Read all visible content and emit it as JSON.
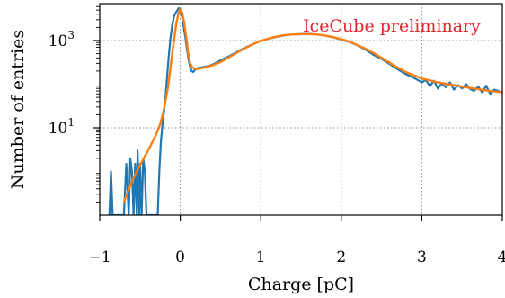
{
  "chart_data": {
    "type": "line",
    "title": "",
    "xlabel": "Charge [pC]",
    "ylabel": "Number of entries",
    "xlim": [
      -1,
      4
    ],
    "ylim": [
      0.1,
      7000
    ],
    "yscale": "log",
    "grid": true,
    "x_ticks": [
      {
        "value": -1,
        "label": "−1"
      },
      {
        "value": 0,
        "label": "0"
      },
      {
        "value": 1,
        "label": "1"
      },
      {
        "value": 2,
        "label": "2"
      },
      {
        "value": 3,
        "label": "3"
      },
      {
        "value": 4,
        "label": "4"
      }
    ],
    "y_ticks": [
      {
        "value": 10,
        "base": "10",
        "exp": "1"
      },
      {
        "value": 1000,
        "base": "10",
        "exp": "3"
      }
    ],
    "annotation": {
      "text": "IceCube preliminary",
      "color": "#e8222b"
    },
    "colors": {
      "data": "#1f77b4",
      "fit": "#ff7f0e",
      "grid": "#8c8c8c",
      "annotation": "#e8222b"
    },
    "series": [
      {
        "role": "data",
        "color": "#1f77b4",
        "x": [
          -0.88,
          -0.86,
          -0.84,
          -0.7,
          -0.67,
          -0.64,
          -0.62,
          -0.6,
          -0.58,
          -0.56,
          -0.54,
          -0.53,
          -0.51,
          -0.5,
          -0.48,
          -0.46,
          -0.44,
          -0.42,
          -0.4,
          -0.28,
          -0.26,
          -0.24,
          -0.22,
          -0.2,
          -0.18,
          -0.16,
          -0.14,
          -0.12,
          -0.1,
          -0.08,
          -0.06,
          -0.04,
          -0.02,
          0.0,
          0.02,
          0.04,
          0.06,
          0.08,
          0.1,
          0.12,
          0.14,
          0.16,
          0.18,
          0.2,
          0.25,
          0.3,
          0.35,
          0.4,
          0.5,
          0.6,
          0.7,
          0.8,
          0.9,
          1.0,
          1.1,
          1.2,
          1.3,
          1.4,
          1.5,
          1.6,
          1.7,
          1.8,
          1.9,
          2.0,
          2.1,
          2.2,
          2.3,
          2.4,
          2.5,
          2.6,
          2.7,
          2.8,
          2.9,
          3.0,
          3.05,
          3.1,
          3.15,
          3.2,
          3.25,
          3.3,
          3.35,
          3.4,
          3.45,
          3.5,
          3.55,
          3.6,
          3.65,
          3.7,
          3.75,
          3.8,
          3.85,
          3.9,
          3.95,
          4.0
        ],
        "y": [
          0.1,
          1,
          0.1,
          0.1,
          1.5,
          0.1,
          2,
          1,
          0.1,
          1.5,
          0.1,
          3,
          0.1,
          1.5,
          0.1,
          2,
          1,
          0.1,
          0.1,
          0.1,
          1,
          5,
          12,
          25,
          60,
          180,
          500,
          1200,
          2200,
          3500,
          4200,
          4800,
          5500,
          5000,
          3600,
          2200,
          1300,
          700,
          400,
          260,
          200,
          190,
          210,
          230,
          240,
          250,
          260,
          280,
          350,
          430,
          540,
          680,
          820,
          980,
          1100,
          1220,
          1320,
          1380,
          1400,
          1420,
          1380,
          1300,
          1180,
          1050,
          930,
          780,
          620,
          470,
          380,
          290,
          220,
          170,
          140,
          110,
          125,
          90,
          120,
          80,
          105,
          85,
          110,
          75,
          95,
          80,
          100,
          78,
          70,
          88,
          65,
          92,
          60,
          75,
          70,
          62
        ]
      },
      {
        "role": "fit",
        "color": "#ff7f0e",
        "x": [
          -0.7,
          -0.6,
          -0.5,
          -0.4,
          -0.3,
          -0.25,
          -0.2,
          -0.15,
          -0.1,
          -0.05,
          -0.02,
          0.0,
          0.02,
          0.05,
          0.08,
          0.1,
          0.12,
          0.15,
          0.2,
          0.3,
          0.4,
          0.5,
          0.6,
          0.7,
          0.8,
          0.9,
          1.0,
          1.1,
          1.2,
          1.3,
          1.4,
          1.5,
          1.6,
          1.7,
          1.8,
          1.9,
          2.0,
          2.1,
          2.2,
          2.3,
          2.4,
          2.5,
          2.6,
          2.7,
          2.8,
          2.9,
          3.0,
          3.2,
          3.4,
          3.6,
          3.8,
          4.0
        ],
        "y": [
          0.2,
          0.6,
          1.4,
          3,
          7,
          12,
          28,
          90,
          500,
          2400,
          4300,
          5200,
          4500,
          2500,
          1000,
          500,
          310,
          240,
          220,
          240,
          270,
          320,
          410,
          520,
          660,
          820,
          980,
          1120,
          1240,
          1330,
          1380,
          1400,
          1400,
          1370,
          1300,
          1200,
          1080,
          940,
          790,
          650,
          520,
          400,
          310,
          240,
          190,
          160,
          135,
          110,
          95,
          82,
          72,
          65
        ]
      }
    ]
  }
}
